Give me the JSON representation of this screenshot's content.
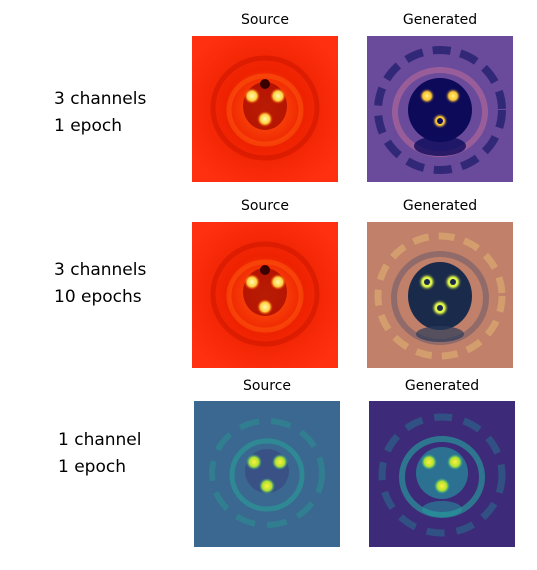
{
  "rows": [
    {
      "label_line1": "3 channels",
      "label_line2": "1 epoch",
      "source_title": "Source",
      "generated_title": "Generated",
      "source_colormap": "red",
      "generated_colormap": "plasma-dark"
    },
    {
      "label_line1": "3 channels",
      "label_line2": "10 epochs",
      "source_title": "Source",
      "generated_title": "Generated",
      "source_colormap": "red",
      "generated_colormap": "warm-brown"
    },
    {
      "label_line1": "1 channel",
      "label_line2": "1 epoch",
      "source_title": "Source",
      "generated_title": "Generated",
      "source_colormap": "viridis",
      "generated_colormap": "viridis"
    }
  ],
  "colors": {
    "red_bg": "#ee2200",
    "red_dark": "#7a0000",
    "red_spot": "#fff27a",
    "plasma_bg": "#6a4a9a",
    "plasma_dark": "#0d0a5a",
    "plasma_spot": "#f8d23c",
    "warm_bg": "#c0806a",
    "warm_dark": "#1a2a4a",
    "warm_spot": "#d8f040",
    "viridis_bg": "#3a6890",
    "viridis_dark": "#3d2b7a",
    "viridis_ring": "#22b5a0",
    "viridis_spot": "#f0f030"
  }
}
